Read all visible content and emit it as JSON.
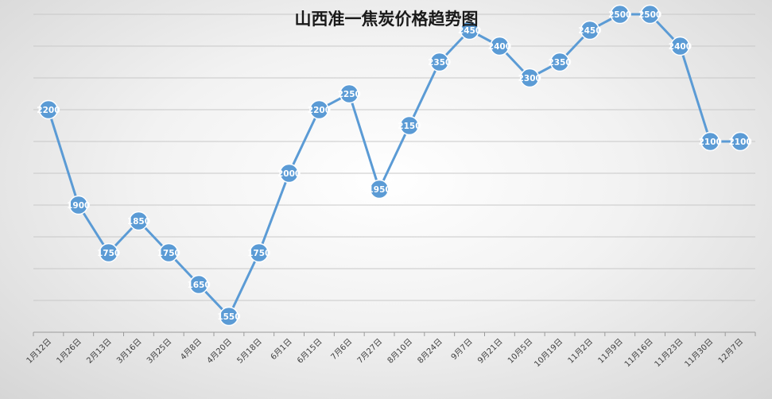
{
  "chart_data": {
    "type": "line",
    "title": "山西准一焦炭价格趋势图",
    "xlabel": "",
    "ylabel": "",
    "ylim": [
      1500,
      2550
    ],
    "grid": true,
    "legend": "none",
    "line_color": "#5b9bd5",
    "categories": [
      "1月12日",
      "1月26日",
      "2月13日",
      "3月16日",
      "3月25日",
      "4月8日",
      "4月20日",
      "5月18日",
      "6月1日",
      "6月15日",
      "7月6日",
      "7月27日",
      "8月10日",
      "8月24日",
      "9月7日",
      "9月21日",
      "10月5日",
      "10月19日",
      "11月2日",
      "11月9日",
      "11月16日",
      "11月23日",
      "11月30日",
      "12月7日"
    ],
    "series": [
      {
        "values": [
          2200,
          1900,
          1750,
          1850,
          1750,
          1650,
          1550,
          1750,
          2000,
          2200,
          2250,
          1950,
          2150,
          2350,
          2450,
          2400,
          2300,
          2350,
          2450,
          2500,
          2500,
          2400,
          2100,
          2100
        ]
      }
    ]
  }
}
